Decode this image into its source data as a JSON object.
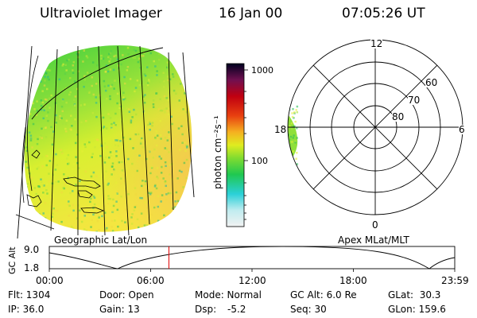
{
  "header": {
    "title": "Ultraviolet Imager",
    "date": "16 Jan 00",
    "time": "07:05:26 UT"
  },
  "colorbar": {
    "unit_label": "photon cm⁻²s⁻¹",
    "ticks": [
      "1000",
      "100"
    ]
  },
  "polar_plot": {
    "mlt_labels": [
      "12",
      "18",
      "6",
      "0"
    ],
    "lat_labels": [
      "60",
      "70",
      "80"
    ]
  },
  "panel_labels": {
    "left": "Geographic Lat/Lon",
    "right": "Apex MLat/MLT"
  },
  "altitude_plot": {
    "ylabel": "GC Alt",
    "y_ticks": [
      "9.0",
      "1.8"
    ],
    "x_ticks": [
      "00:00",
      "06:00",
      "12:00",
      "18:00",
      "23:59"
    ],
    "current_time_fraction": 0.295
  },
  "info": {
    "flt": "Flt: 1304",
    "ip": "IP: 36.0",
    "door": "Door: Open",
    "gain": "Gain: 13",
    "mode": "Mode: Normal",
    "dsp_label": "Dsp:",
    "dsp_value": "-5.2",
    "gc_alt": "GC Alt: 6.0 Re",
    "seq": "Seq: 30",
    "glat": "GLat:  30.3",
    "glon": "GLon: 159.6"
  },
  "colors": {
    "marker": "#e00000"
  }
}
